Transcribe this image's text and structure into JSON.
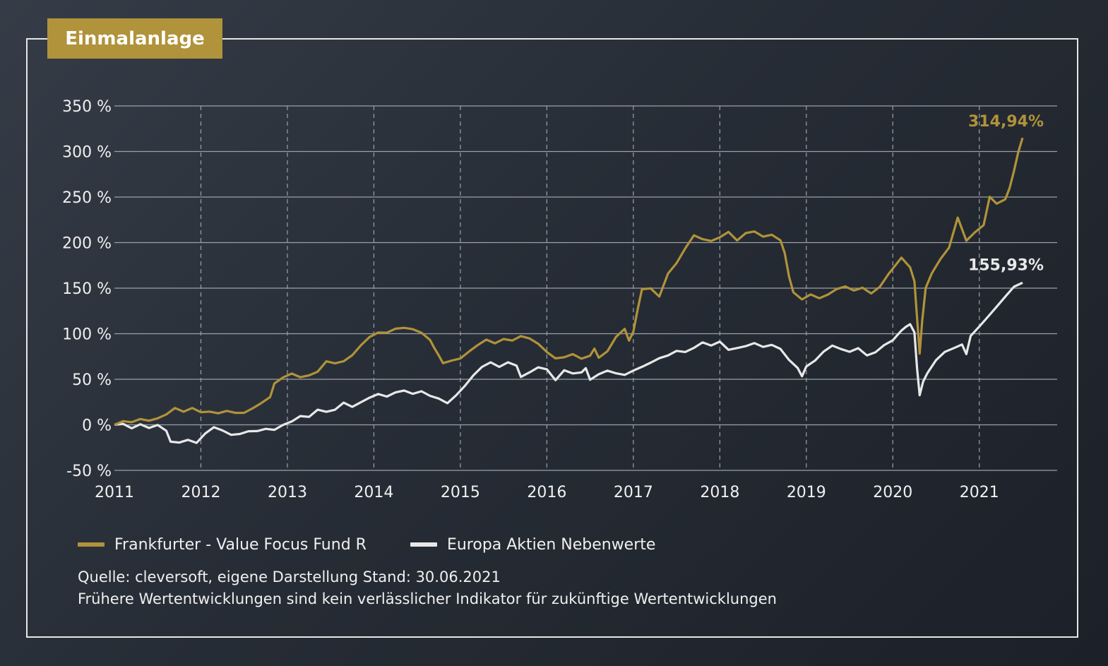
{
  "header": {
    "title": "Einmalanlage"
  },
  "legend": [
    {
      "label": "Frankfurter - Value Focus Fund R",
      "color": "#b0933a"
    },
    {
      "label": "Europa Aktien Nebenwerte",
      "color": "#e8e8e8"
    }
  ],
  "notes": {
    "source": "Quelle: cleversoft, eigene Darstellung Stand: 30.06.2021",
    "disclaimer": "Frühere Wertentwicklungen sind kein verlässlicher Indikator für zukünftige Wertentwicklungen"
  },
  "chart_data": {
    "type": "line",
    "title": "Einmalanlage",
    "xlabel": "",
    "ylabel": "",
    "xlim": [
      2011.0,
      2021.9
    ],
    "ylim": [
      -50,
      350
    ],
    "x_ticks": [
      2011,
      2012,
      2013,
      2014,
      2015,
      2016,
      2017,
      2018,
      2019,
      2020,
      2021
    ],
    "x_tick_labels": [
      "2011",
      "2012",
      "2013",
      "2014",
      "2015",
      "2016",
      "2017",
      "2018",
      "2019",
      "2020",
      "2021"
    ],
    "y_ticks": [
      -50,
      0,
      50,
      100,
      150,
      200,
      250,
      300,
      350
    ],
    "y_tick_labels": [
      "-50 %",
      "0 %",
      "50 %",
      "100 %",
      "150 %",
      "200 %",
      "250 %",
      "300 %",
      "350 %"
    ],
    "grid": {
      "horizontal": "solid",
      "vertical": "dashed"
    },
    "legend_position": "bottom-left",
    "series": [
      {
        "name": "Frankfurter - Value Focus Fund R",
        "color": "#b0933a",
        "end_label": "314,94%",
        "points": [
          [
            2011.0,
            0
          ],
          [
            2011.1,
            3
          ],
          [
            2011.2,
            1
          ],
          [
            2011.3,
            4
          ],
          [
            2011.4,
            2
          ],
          [
            2011.5,
            5
          ],
          [
            2011.6,
            10
          ],
          [
            2011.7,
            18
          ],
          [
            2011.8,
            15
          ],
          [
            2011.9,
            20
          ],
          [
            2012.0,
            16
          ],
          [
            2012.1,
            17
          ],
          [
            2012.2,
            15
          ],
          [
            2012.3,
            17
          ],
          [
            2012.4,
            14
          ],
          [
            2012.5,
            13
          ],
          [
            2012.6,
            17
          ],
          [
            2012.7,
            22
          ],
          [
            2012.8,
            28
          ],
          [
            2012.85,
            43
          ],
          [
            2012.95,
            50
          ],
          [
            2013.05,
            55
          ],
          [
            2013.15,
            52
          ],
          [
            2013.25,
            55
          ],
          [
            2013.35,
            60
          ],
          [
            2013.45,
            72
          ],
          [
            2013.55,
            70
          ],
          [
            2013.65,
            72
          ],
          [
            2013.75,
            78
          ],
          [
            2013.85,
            88
          ],
          [
            2013.95,
            96
          ],
          [
            2014.05,
            100
          ],
          [
            2014.15,
            99
          ],
          [
            2014.25,
            103
          ],
          [
            2014.35,
            104
          ],
          [
            2014.45,
            103
          ],
          [
            2014.55,
            100
          ],
          [
            2014.65,
            93
          ],
          [
            2014.7,
            85
          ],
          [
            2014.75,
            78
          ],
          [
            2014.8,
            70
          ],
          [
            2014.9,
            73
          ],
          [
            2015.0,
            75
          ],
          [
            2015.1,
            82
          ],
          [
            2015.2,
            88
          ],
          [
            2015.3,
            93
          ],
          [
            2015.4,
            88
          ],
          [
            2015.5,
            92
          ],
          [
            2015.6,
            90
          ],
          [
            2015.7,
            95
          ],
          [
            2015.8,
            93
          ],
          [
            2015.9,
            88
          ],
          [
            2016.0,
            80
          ],
          [
            2016.1,
            74
          ],
          [
            2016.2,
            76
          ],
          [
            2016.3,
            80
          ],
          [
            2016.4,
            75
          ],
          [
            2016.5,
            78
          ],
          [
            2016.55,
            85
          ],
          [
            2016.6,
            74
          ],
          [
            2016.7,
            80
          ],
          [
            2016.8,
            95
          ],
          [
            2016.9,
            103
          ],
          [
            2016.95,
            90
          ],
          [
            2017.0,
            100
          ],
          [
            2017.05,
            125
          ],
          [
            2017.1,
            148
          ],
          [
            2017.2,
            150
          ],
          [
            2017.3,
            142
          ],
          [
            2017.4,
            168
          ],
          [
            2017.5,
            180
          ],
          [
            2017.6,
            196
          ],
          [
            2017.7,
            210
          ],
          [
            2017.8,
            205
          ],
          [
            2017.9,
            202
          ],
          [
            2018.0,
            205
          ],
          [
            2018.1,
            210
          ],
          [
            2018.2,
            200
          ],
          [
            2018.3,
            208
          ],
          [
            2018.4,
            210
          ],
          [
            2018.5,
            205
          ],
          [
            2018.6,
            208
          ],
          [
            2018.7,
            203
          ],
          [
            2018.75,
            190
          ],
          [
            2018.8,
            165
          ],
          [
            2018.85,
            148
          ],
          [
            2018.95,
            140
          ],
          [
            2019.05,
            145
          ],
          [
            2019.15,
            140
          ],
          [
            2019.25,
            143
          ],
          [
            2019.35,
            148
          ],
          [
            2019.45,
            150
          ],
          [
            2019.55,
            145
          ],
          [
            2019.65,
            148
          ],
          [
            2019.75,
            142
          ],
          [
            2019.85,
            150
          ],
          [
            2019.95,
            165
          ],
          [
            2020.05,
            178
          ],
          [
            2020.1,
            185
          ],
          [
            2020.2,
            175
          ],
          [
            2020.25,
            160
          ],
          [
            2020.28,
            120
          ],
          [
            2020.31,
            80
          ],
          [
            2020.34,
            115
          ],
          [
            2020.38,
            150
          ],
          [
            2020.45,
            165
          ],
          [
            2020.55,
            180
          ],
          [
            2020.65,
            192
          ],
          [
            2020.75,
            225
          ],
          [
            2020.85,
            200
          ],
          [
            2020.95,
            210
          ],
          [
            2021.0,
            215
          ],
          [
            2021.05,
            220
          ],
          [
            2021.12,
            252
          ],
          [
            2021.2,
            245
          ],
          [
            2021.3,
            250
          ],
          [
            2021.35,
            262
          ],
          [
            2021.4,
            280
          ],
          [
            2021.45,
            300
          ],
          [
            2021.5,
            315
          ]
        ]
      },
      {
        "name": "Europa Aktien Nebenwerte",
        "color": "#e8e8e8",
        "end_label": "155,93%",
        "points": [
          [
            2011.0,
            0
          ],
          [
            2011.1,
            2
          ],
          [
            2011.2,
            -2
          ],
          [
            2011.3,
            3
          ],
          [
            2011.4,
            -1
          ],
          [
            2011.5,
            2
          ],
          [
            2011.6,
            -5
          ],
          [
            2011.65,
            -18
          ],
          [
            2011.75,
            -20
          ],
          [
            2011.85,
            -18
          ],
          [
            2011.95,
            -22
          ],
          [
            2012.05,
            -12
          ],
          [
            2012.15,
            -5
          ],
          [
            2012.25,
            -8
          ],
          [
            2012.35,
            -12
          ],
          [
            2012.45,
            -10
          ],
          [
            2012.55,
            -6
          ],
          [
            2012.65,
            -5
          ],
          [
            2012.75,
            -2
          ],
          [
            2012.85,
            -3
          ],
          [
            2012.95,
            2
          ],
          [
            2013.05,
            5
          ],
          [
            2013.15,
            10
          ],
          [
            2013.25,
            8
          ],
          [
            2013.35,
            15
          ],
          [
            2013.45,
            12
          ],
          [
            2013.55,
            14
          ],
          [
            2013.65,
            22
          ],
          [
            2013.75,
            18
          ],
          [
            2013.85,
            24
          ],
          [
            2013.95,
            30
          ],
          [
            2014.05,
            35
          ],
          [
            2014.15,
            33
          ],
          [
            2014.25,
            38
          ],
          [
            2014.35,
            40
          ],
          [
            2014.45,
            36
          ],
          [
            2014.55,
            38
          ],
          [
            2014.65,
            32
          ],
          [
            2014.75,
            28
          ],
          [
            2014.85,
            22
          ],
          [
            2014.95,
            30
          ],
          [
            2015.05,
            40
          ],
          [
            2015.15,
            52
          ],
          [
            2015.25,
            62
          ],
          [
            2015.35,
            68
          ],
          [
            2015.45,
            64
          ],
          [
            2015.55,
            70
          ],
          [
            2015.65,
            67
          ],
          [
            2015.7,
            55
          ],
          [
            2015.8,
            60
          ],
          [
            2015.9,
            65
          ],
          [
            2016.0,
            62
          ],
          [
            2016.05,
            55
          ],
          [
            2016.1,
            48
          ],
          [
            2016.2,
            58
          ],
          [
            2016.3,
            54
          ],
          [
            2016.4,
            55
          ],
          [
            2016.45,
            60
          ],
          [
            2016.5,
            48
          ],
          [
            2016.6,
            55
          ],
          [
            2016.7,
            60
          ],
          [
            2016.8,
            58
          ],
          [
            2016.9,
            57
          ],
          [
            2017.0,
            62
          ],
          [
            2017.1,
            66
          ],
          [
            2017.2,
            70
          ],
          [
            2017.3,
            74
          ],
          [
            2017.4,
            76
          ],
          [
            2017.5,
            80
          ],
          [
            2017.6,
            78
          ],
          [
            2017.7,
            82
          ],
          [
            2017.8,
            88
          ],
          [
            2017.9,
            85
          ],
          [
            2018.0,
            90
          ],
          [
            2018.1,
            82
          ],
          [
            2018.2,
            85
          ],
          [
            2018.3,
            88
          ],
          [
            2018.4,
            92
          ],
          [
            2018.5,
            88
          ],
          [
            2018.6,
            90
          ],
          [
            2018.7,
            85
          ],
          [
            2018.8,
            72
          ],
          [
            2018.9,
            62
          ],
          [
            2018.95,
            52
          ],
          [
            2019.0,
            62
          ],
          [
            2019.1,
            68
          ],
          [
            2019.2,
            78
          ],
          [
            2019.3,
            85
          ],
          [
            2019.4,
            82
          ],
          [
            2019.5,
            80
          ],
          [
            2019.6,
            85
          ],
          [
            2019.7,
            78
          ],
          [
            2019.8,
            82
          ],
          [
            2019.9,
            90
          ],
          [
            2020.0,
            95
          ],
          [
            2020.1,
            105
          ],
          [
            2020.15,
            108
          ],
          [
            2020.2,
            110
          ],
          [
            2020.25,
            100
          ],
          [
            2020.28,
            60
          ],
          [
            2020.31,
            30
          ],
          [
            2020.35,
            45
          ],
          [
            2020.4,
            55
          ],
          [
            2020.5,
            70
          ],
          [
            2020.6,
            80
          ],
          [
            2020.7,
            85
          ],
          [
            2020.8,
            90
          ],
          [
            2020.85,
            80
          ],
          [
            2020.9,
            100
          ],
          [
            2021.0,
            110
          ],
          [
            2021.1,
            120
          ],
          [
            2021.2,
            130
          ],
          [
            2021.3,
            140
          ],
          [
            2021.4,
            150
          ],
          [
            2021.5,
            156
          ]
        ]
      }
    ]
  }
}
